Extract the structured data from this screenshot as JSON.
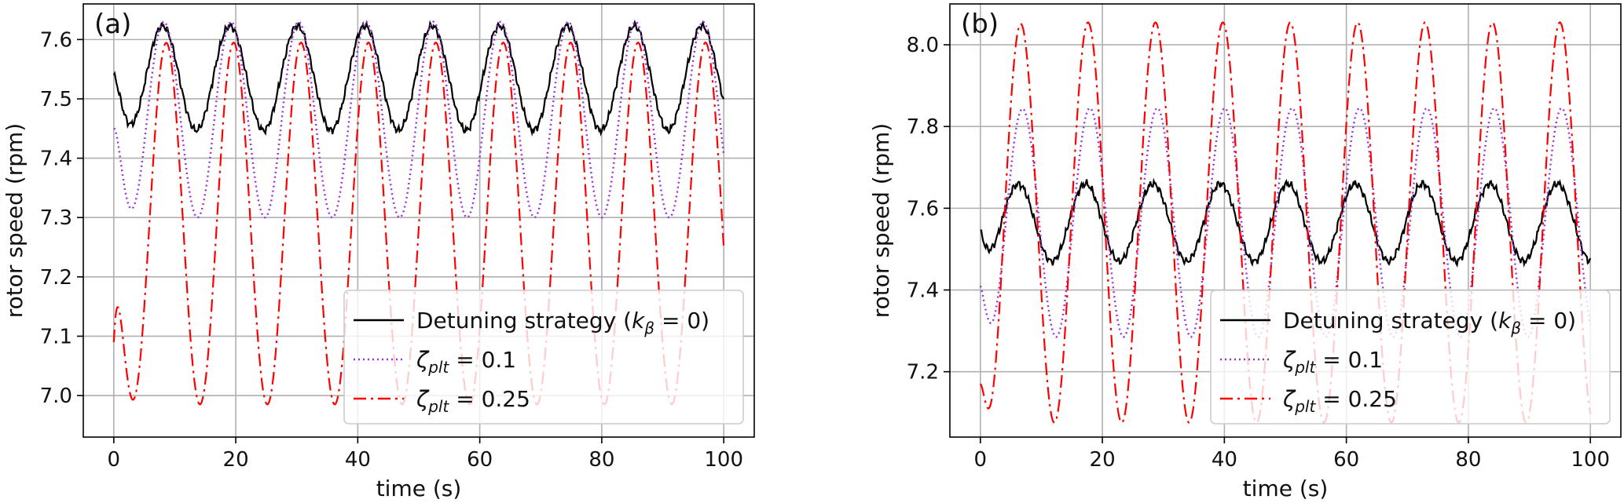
{
  "chart_data": [
    {
      "type": "line",
      "panel_label": "(a)",
      "xlabel": "time (s)",
      "ylabel": "rotor speed (rpm)",
      "xlim": [
        -5,
        105
      ],
      "ylim": [
        6.93,
        7.66
      ],
      "x_ticks": [
        0,
        20,
        40,
        60,
        80,
        100
      ],
      "x_tick_labels": [
        "0",
        "20",
        "40",
        "60",
        "80",
        "100"
      ],
      "y_ticks": [
        7.0,
        7.1,
        7.2,
        7.3,
        7.4,
        7.5,
        7.6
      ],
      "y_tick_labels": [
        "7.0",
        "7.1",
        "7.2",
        "7.3",
        "7.4",
        "7.5",
        "7.6"
      ],
      "grid": true,
      "legend_position": "bottom-right",
      "x_range": [
        0,
        100
      ],
      "series": [
        {
          "name": "Detuning strategy (k_β = 0)",
          "legend": {
            "pre": "Detuning strategy (",
            "sym": "k",
            "sub": "β",
            "post": " = 0)"
          },
          "color": "#000000",
          "style": "solid",
          "period": 11.05,
          "peak_time": 8.0,
          "mean": 7.535,
          "amplitude": 0.088,
          "start_value": 7.54,
          "noise": 0.004
        },
        {
          "name": "ζ_plt = 0.1",
          "legend": {
            "pre": "",
            "sym": "ζ",
            "sub": "plt",
            "post": " = 0.1"
          },
          "color": "#9b30d9",
          "style": "dotted",
          "period": 11.05,
          "peak_time": 8.2,
          "mean": 7.465,
          "amplitude": 0.165,
          "start_value": 7.45,
          "noise": 0.0
        },
        {
          "name": "ζ_plt = 0.25",
          "legend": {
            "pre": "",
            "sym": "ζ",
            "sub": "plt",
            "post": " = 0.25"
          },
          "color": "#ff0000",
          "style": "dashdot",
          "period": 11.05,
          "peak_time": 8.6,
          "mean": 7.29,
          "amplitude": 0.305,
          "start_value": 7.09,
          "noise": 0.0
        }
      ]
    },
    {
      "type": "line",
      "panel_label": "(b)",
      "xlabel": "time (s)",
      "ylabel": "rotor speed (rpm)",
      "xlim": [
        -5,
        105
      ],
      "ylim": [
        7.04,
        8.1
      ],
      "x_ticks": [
        0,
        20,
        40,
        60,
        80,
        100
      ],
      "x_tick_labels": [
        "0",
        "20",
        "40",
        "60",
        "80",
        "100"
      ],
      "y_ticks": [
        7.2,
        7.4,
        7.6,
        7.8,
        8.0
      ],
      "y_tick_labels": [
        "7.2",
        "7.4",
        "7.6",
        "7.8",
        "8.0"
      ],
      "grid": true,
      "legend_position": "bottom-right",
      "x_range": [
        0,
        100
      ],
      "series": [
        {
          "name": "Detuning strategy (k_β = 0)",
          "legend": {
            "pre": "Detuning strategy (",
            "sym": "k",
            "sub": "β",
            "post": " = 0)"
          },
          "color": "#000000",
          "style": "solid",
          "period": 11.05,
          "peak_time": 6.2,
          "mean": 7.565,
          "amplitude": 0.095,
          "start_value": 7.545,
          "noise": 0.006
        },
        {
          "name": "ζ_plt = 0.1",
          "legend": {
            "pre": "",
            "sym": "ζ",
            "sub": "plt",
            "post": " = 0.1"
          },
          "color": "#9b30d9",
          "style": "dotted",
          "period": 11.05,
          "peak_time": 6.9,
          "mean": 7.565,
          "amplitude": 0.28,
          "start_value": 7.41,
          "noise": 0.0
        },
        {
          "name": "ζ_plt = 0.25",
          "legend": {
            "pre": "",
            "sym": "ζ",
            "sub": "plt",
            "post": " = 0.25"
          },
          "color": "#ff0000",
          "style": "dashdot",
          "period": 11.05,
          "peak_time": 6.6,
          "mean": 7.565,
          "amplitude": 0.49,
          "start_value": 7.17,
          "noise": 0.0
        }
      ]
    }
  ]
}
